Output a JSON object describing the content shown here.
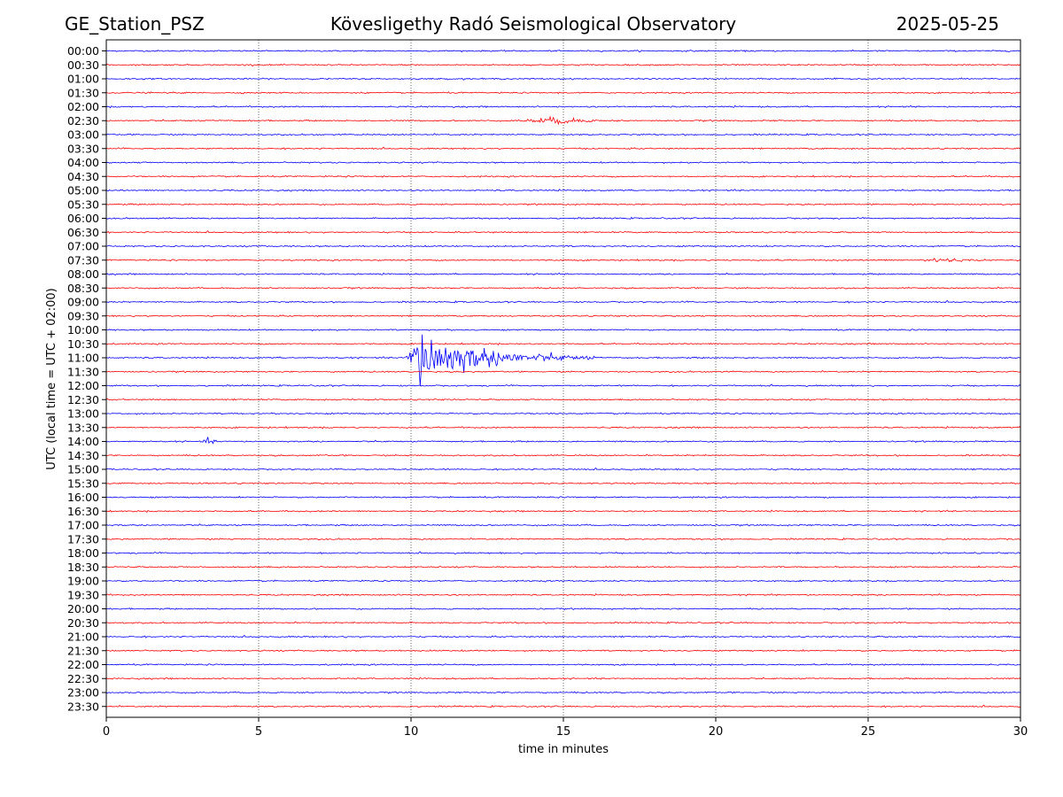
{
  "header": {
    "station": "GE_Station_PSZ",
    "observatory": "Kövesligethy Radó Seismological Observatory",
    "date": "2025-05-25"
  },
  "chart_data": {
    "type": "line",
    "title": "Kövesligethy Radó Seismological Observatory",
    "xlabel": "time in minutes",
    "ylabel": "UTC (local time = UTC + 02:00)",
    "xlim": [
      0,
      30
    ],
    "xticks": [
      0,
      5,
      10,
      15,
      20,
      25,
      30
    ],
    "x_grid": "dotted vertical lines every 5 minutes",
    "row_labels": [
      "00:00",
      "00:30",
      "01:00",
      "01:30",
      "02:00",
      "02:30",
      "03:00",
      "03:30",
      "04:00",
      "04:30",
      "05:00",
      "05:30",
      "06:00",
      "06:30",
      "07:00",
      "07:30",
      "08:00",
      "08:30",
      "09:00",
      "09:30",
      "10:00",
      "10:30",
      "11:00",
      "11:30",
      "12:00",
      "12:30",
      "13:00",
      "13:30",
      "14:00",
      "14:30",
      "15:00",
      "15:30",
      "16:00",
      "16:30",
      "17:00",
      "17:30",
      "18:00",
      "18:30",
      "19:00",
      "19:30",
      "20:00",
      "20:30",
      "21:00",
      "21:30",
      "22:00",
      "22:30",
      "23:00",
      "23:30"
    ],
    "row_colors": [
      "#0000ff",
      "#ff0000"
    ],
    "events": [
      {
        "row": "02:30",
        "start_min": 13.3,
        "peak_min": 15.0,
        "end_min": 16.8,
        "amplitude": 0.3
      },
      {
        "row": "07:30",
        "start_min": 26.7,
        "peak_min": 27.3,
        "end_min": 28.9,
        "amplitude": 0.25
      },
      {
        "row": "11:00",
        "start_min": 9.8,
        "peak_min": 10.3,
        "end_min": 16.0,
        "amplitude": 2.6
      },
      {
        "row": "14:00",
        "start_min": 3.1,
        "peak_min": 3.4,
        "end_min": 3.8,
        "amplitude": 0.25
      }
    ],
    "background_noise_amplitude": 0.06
  }
}
